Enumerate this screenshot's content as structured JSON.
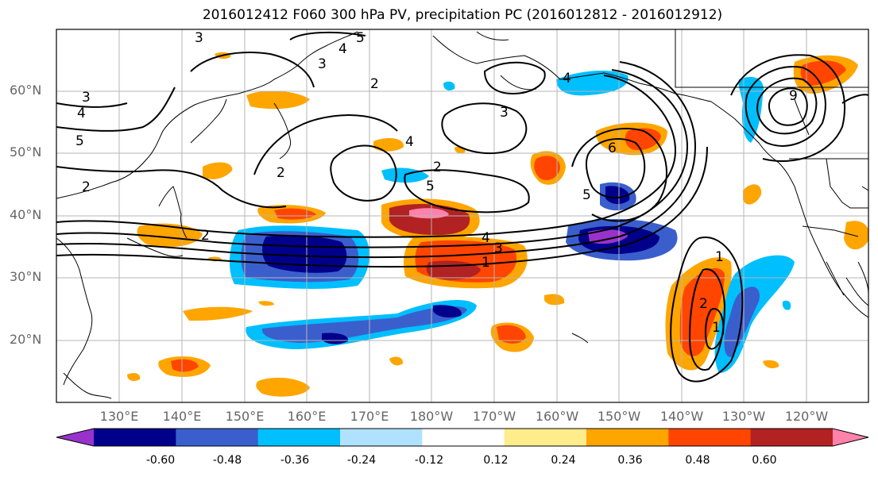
{
  "title": "2016012412 F060 300 hPa PV, precipitation PC (2016012812 - 2016012912)",
  "lat_labels": [
    "60°N",
    "50°N",
    "40°N",
    "30°N",
    "20°N"
  ],
  "lon_labels": [
    "130°E",
    "140°E",
    "150°E",
    "160°E",
    "170°E",
    "180°W",
    "170°W",
    "160°W",
    "150°W",
    "140°W",
    "130°W",
    "120°W"
  ],
  "colorbar": {
    "colors": [
      "#9932cc",
      "#00008b",
      "#3a5fcd",
      "#00bfff",
      "#b0e2ff",
      "#ffffff",
      "#ffec8b",
      "#ffa500",
      "#ff4500",
      "#b22222",
      "#ff82ab"
    ],
    "labels": [
      "-0.60",
      "-0.48",
      "-0.36",
      "-0.24",
      "-0.12",
      "0.12",
      "0.24",
      "0.36",
      "0.48",
      "0.60"
    ]
  },
  "contour_labels": [
    "3",
    "5",
    "4",
    "3",
    "2",
    "4",
    "3",
    "4",
    "5",
    "2",
    "3",
    "4",
    "5",
    "6",
    "5",
    "2",
    "4",
    "3",
    "1",
    "2",
    "1",
    "2",
    "1",
    "2",
    "9"
  ]
}
